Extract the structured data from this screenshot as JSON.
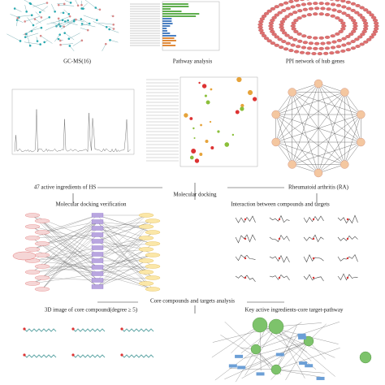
{
  "panels": {
    "gcms": {
      "title": "GC-MS(16)"
    },
    "pathway": {
      "title": "Pathway analysis"
    },
    "ppi": {
      "title": "PPI network of hub genes"
    }
  },
  "flow": {
    "ingredients": "47 active ingredients of HS",
    "docking": "Molecular docking",
    "disease": "Rheumatoid arthritis (RA)"
  },
  "docking": {
    "verification": "Molecular docking verification",
    "interaction": "Interaction between compounds and targets"
  },
  "core": {
    "title": "Core compounds and targets analysis",
    "image3d": "3D image of core compound(degree ≥ 5)",
    "network": "Key active ingredients-core target-pathway"
  }
}
